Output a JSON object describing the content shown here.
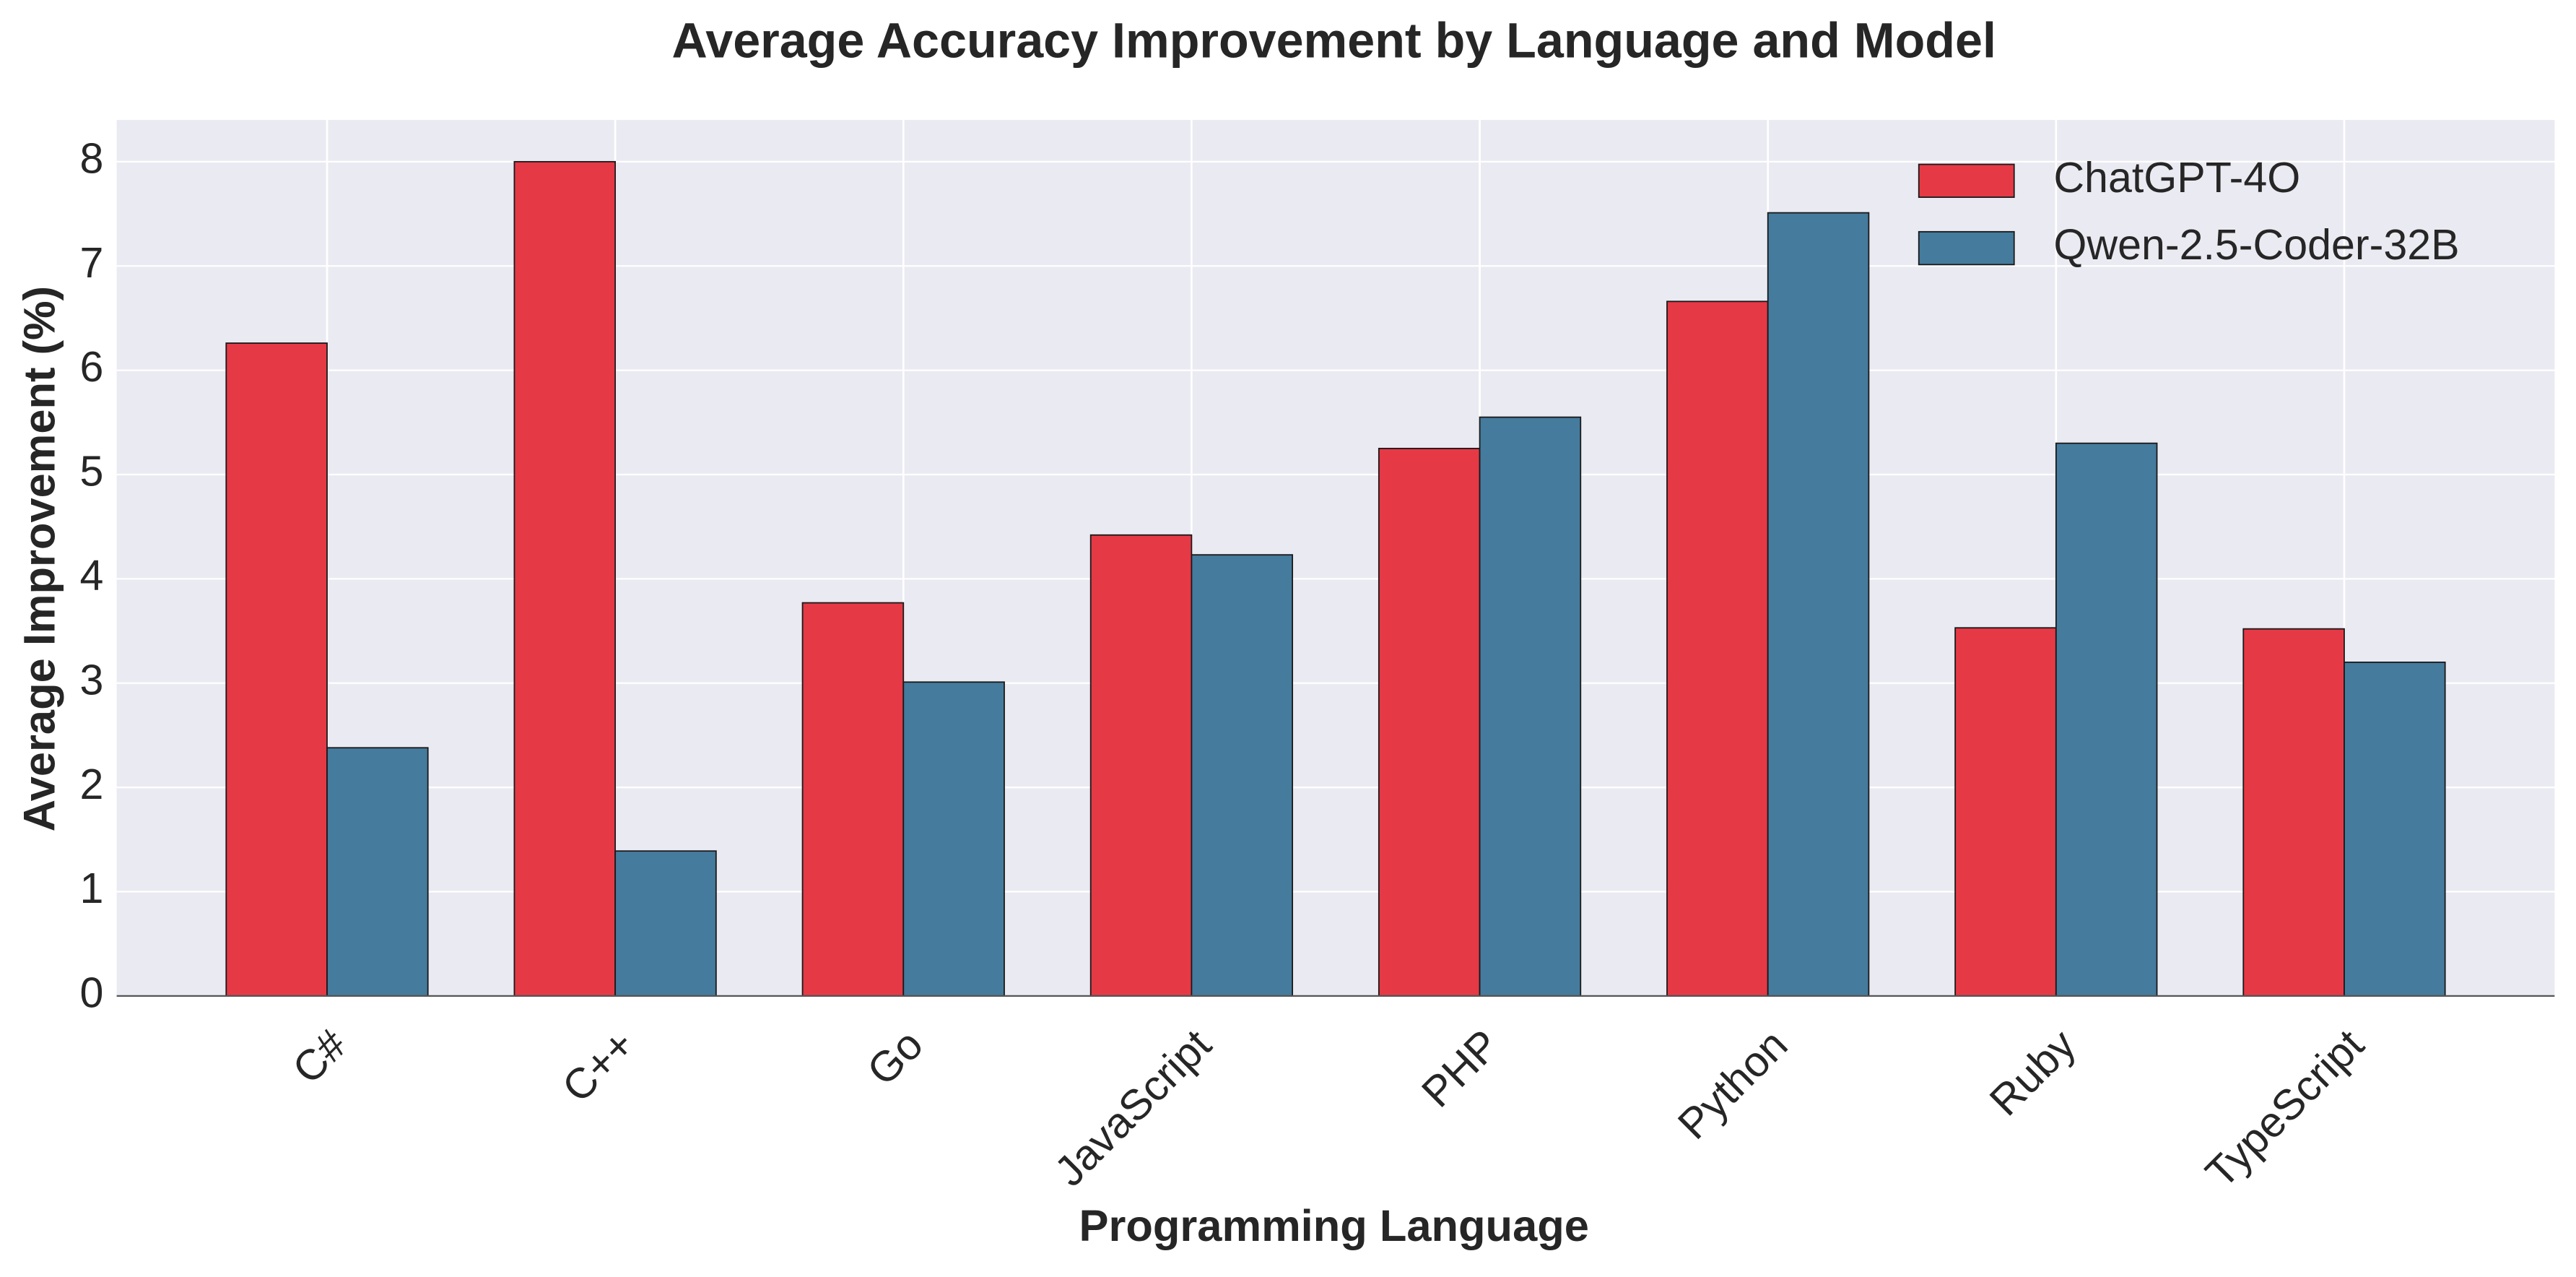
{
  "chart_data": {
    "type": "bar",
    "title": "Average Accuracy Improvement by Language and Model",
    "x_label": "Programming Language",
    "y_label": "Average Improvement (%)",
    "categories": [
      "C#",
      "C++",
      "Go",
      "JavaScript",
      "PHP",
      "Python",
      "Ruby",
      "TypeScript"
    ],
    "series": [
      {
        "name": "ChatGPT-4O",
        "color": "#e63946",
        "values": [
          6.26,
          8.0,
          3.77,
          4.42,
          5.25,
          6.66,
          3.53,
          3.52
        ]
      },
      {
        "name": "Qwen-2.5-Coder-32B",
        "color": "#457b9d",
        "values": [
          2.38,
          1.39,
          3.01,
          4.23,
          5.55,
          7.51,
          5.3,
          3.2
        ]
      }
    ],
    "ylim": [
      0,
      8.4
    ],
    "yticks": [
      0,
      1,
      2,
      3,
      4,
      5,
      6,
      7,
      8
    ],
    "grid": true,
    "legend": "upper right"
  }
}
